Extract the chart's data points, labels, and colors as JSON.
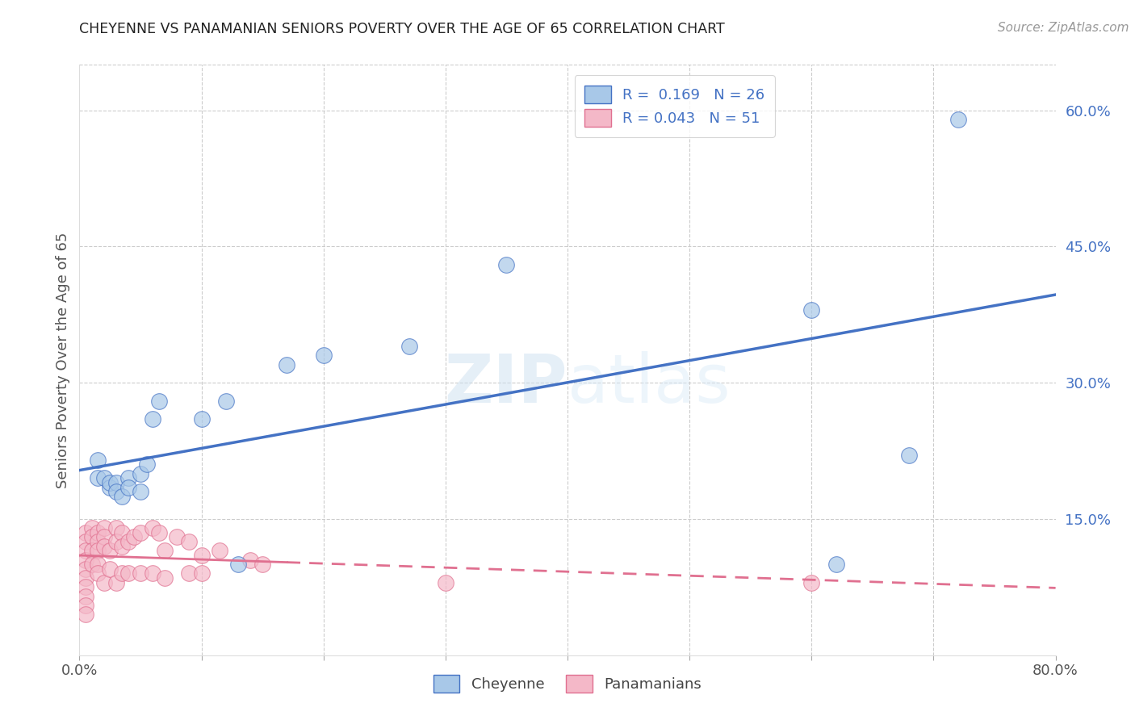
{
  "title": "CHEYENNE VS PANAMANIAN SENIORS POVERTY OVER THE AGE OF 65 CORRELATION CHART",
  "source": "Source: ZipAtlas.com",
  "ylabel": "Seniors Poverty Over the Age of 65",
  "xlim": [
    0.0,
    0.8
  ],
  "ylim": [
    0.0,
    0.65
  ],
  "cheyenne_R": "0.169",
  "cheyenne_N": "26",
  "panamanian_R": "0.043",
  "panamanian_N": "51",
  "cheyenne_color": "#a8c8e8",
  "panamanian_color": "#f4b8c8",
  "cheyenne_line_color": "#4472c4",
  "panamanian_line_color": "#e07090",
  "cheyenne_x": [
    0.015,
    0.015,
    0.02,
    0.025,
    0.025,
    0.03,
    0.03,
    0.035,
    0.04,
    0.04,
    0.05,
    0.05,
    0.055,
    0.06,
    0.065,
    0.1,
    0.12,
    0.13,
    0.17,
    0.2,
    0.27,
    0.35,
    0.6,
    0.62,
    0.68,
    0.72
  ],
  "cheyenne_y": [
    0.215,
    0.195,
    0.195,
    0.185,
    0.19,
    0.19,
    0.18,
    0.175,
    0.195,
    0.185,
    0.2,
    0.18,
    0.21,
    0.26,
    0.28,
    0.26,
    0.28,
    0.1,
    0.32,
    0.33,
    0.34,
    0.43,
    0.38,
    0.1,
    0.22,
    0.59
  ],
  "panamanian_x": [
    0.005,
    0.005,
    0.005,
    0.005,
    0.005,
    0.005,
    0.005,
    0.005,
    0.005,
    0.005,
    0.01,
    0.01,
    0.01,
    0.01,
    0.015,
    0.015,
    0.015,
    0.015,
    0.015,
    0.02,
    0.02,
    0.02,
    0.02,
    0.025,
    0.025,
    0.03,
    0.03,
    0.03,
    0.035,
    0.035,
    0.035,
    0.04,
    0.04,
    0.045,
    0.05,
    0.05,
    0.06,
    0.06,
    0.065,
    0.07,
    0.07,
    0.08,
    0.09,
    0.09,
    0.1,
    0.1,
    0.115,
    0.14,
    0.15,
    0.3,
    0.6
  ],
  "panamanian_y": [
    0.135,
    0.125,
    0.115,
    0.105,
    0.095,
    0.085,
    0.075,
    0.065,
    0.055,
    0.045,
    0.14,
    0.13,
    0.115,
    0.1,
    0.135,
    0.125,
    0.115,
    0.1,
    0.09,
    0.14,
    0.13,
    0.12,
    0.08,
    0.115,
    0.095,
    0.14,
    0.125,
    0.08,
    0.135,
    0.12,
    0.09,
    0.125,
    0.09,
    0.13,
    0.135,
    0.09,
    0.14,
    0.09,
    0.135,
    0.115,
    0.085,
    0.13,
    0.125,
    0.09,
    0.11,
    0.09,
    0.115,
    0.105,
    0.1,
    0.08,
    0.08
  ],
  "watermark": "ZIPatlas",
  "background_color": "#ffffff",
  "grid_color": "#cccccc"
}
